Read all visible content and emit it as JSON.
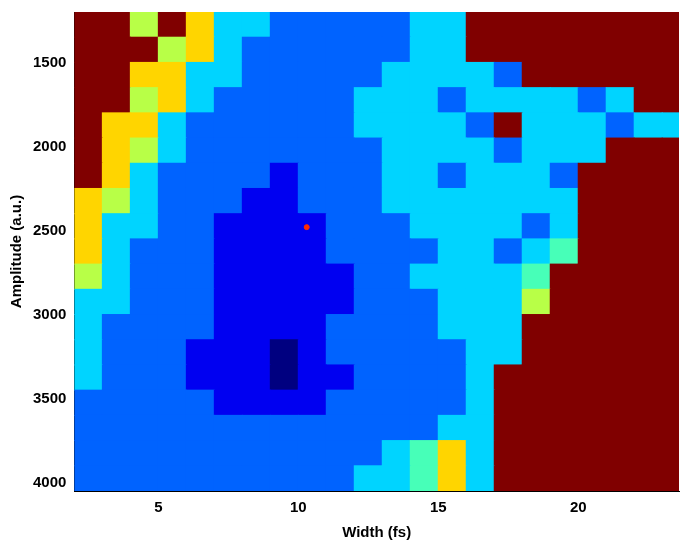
{
  "chart_data": {
    "type": "heatmap",
    "x_label": "Width (fs)",
    "y_label": "Amplitude (a.u.)",
    "xlim": [
      2,
      23.6
    ],
    "ylim": [
      4050,
      1200
    ],
    "xticks": [
      5,
      10,
      15,
      20
    ],
    "yticks": [
      1500,
      2000,
      2500,
      3000,
      3500,
      4000
    ],
    "grid": false,
    "x": [
      2.5,
      3.5,
      4.5,
      5.5,
      6.5,
      7.5,
      8.5,
      9.5,
      10.5,
      11.5,
      12.5,
      13.5,
      14.5,
      15.5,
      16.5,
      17.5,
      18.5,
      19.5,
      20.5,
      21.5,
      22.5,
      23.5
    ],
    "y": [
      1275,
      1425,
      1575,
      1725,
      1875,
      2025,
      2175,
      2325,
      2475,
      2625,
      2775,
      2925,
      3075,
      3225,
      3375,
      3525,
      3675,
      3825,
      3975
    ],
    "cells": [
      [
        9,
        9,
        5,
        9,
        6,
        3,
        3,
        2,
        2,
        2,
        2,
        2,
        3,
        3,
        9,
        9,
        9,
        9,
        9,
        9,
        9,
        9
      ],
      [
        9,
        9,
        9,
        5,
        6,
        3,
        2,
        2,
        2,
        2,
        2,
        2,
        3,
        3,
        9,
        9,
        9,
        9,
        9,
        9,
        9,
        9
      ],
      [
        9,
        9,
        6,
        6,
        3,
        3,
        2,
        2,
        2,
        2,
        2,
        3,
        3,
        3,
        3,
        2,
        9,
        9,
        9,
        9,
        9,
        9
      ],
      [
        9,
        9,
        5,
        6,
        3,
        2,
        2,
        2,
        2,
        2,
        3,
        3,
        3,
        2,
        3,
        3,
        3,
        3,
        2,
        3,
        9,
        9
      ],
      [
        9,
        6,
        6,
        3,
        2,
        2,
        2,
        2,
        2,
        2,
        3,
        3,
        3,
        3,
        2,
        9,
        3,
        3,
        3,
        2,
        3,
        3
      ],
      [
        9,
        6,
        5,
        3,
        2,
        2,
        2,
        2,
        2,
        2,
        2,
        3,
        3,
        3,
        3,
        2,
        3,
        3,
        3,
        9,
        9,
        9
      ],
      [
        9,
        6,
        3,
        2,
        2,
        2,
        2,
        1,
        2,
        2,
        2,
        3,
        3,
        2,
        3,
        3,
        3,
        2,
        9,
        9,
        9,
        9
      ],
      [
        6,
        5,
        3,
        2,
        2,
        2,
        1,
        1,
        2,
        2,
        2,
        3,
        3,
        3,
        3,
        3,
        3,
        3,
        9,
        9,
        9,
        9
      ],
      [
        6,
        3,
        3,
        2,
        2,
        1,
        1,
        1,
        1,
        2,
        2,
        2,
        3,
        3,
        3,
        3,
        2,
        3,
        9,
        9,
        9,
        9
      ],
      [
        6,
        3,
        2,
        2,
        2,
        1,
        1,
        1,
        1,
        2,
        2,
        2,
        2,
        3,
        3,
        2,
        3,
        4,
        9,
        9,
        9,
        9
      ],
      [
        5,
        3,
        2,
        2,
        2,
        1,
        1,
        1,
        1,
        1,
        2,
        2,
        3,
        3,
        3,
        3,
        4,
        9,
        9,
        9,
        9,
        9
      ],
      [
        3,
        3,
        2,
        2,
        2,
        1,
        1,
        1,
        1,
        1,
        2,
        2,
        2,
        3,
        3,
        3,
        5,
        9,
        9,
        9,
        9,
        9
      ],
      [
        3,
        2,
        2,
        2,
        2,
        1,
        1,
        1,
        1,
        2,
        2,
        2,
        2,
        3,
        3,
        3,
        9,
        9,
        9,
        9,
        9,
        9
      ],
      [
        3,
        2,
        2,
        2,
        1,
        1,
        1,
        0,
        1,
        2,
        2,
        2,
        2,
        2,
        3,
        3,
        9,
        9,
        9,
        9,
        9,
        9
      ],
      [
        3,
        2,
        2,
        2,
        1,
        1,
        1,
        0,
        1,
        1,
        2,
        2,
        2,
        2,
        3,
        9,
        9,
        9,
        9,
        9,
        9,
        9
      ],
      [
        2,
        2,
        2,
        2,
        2,
        1,
        1,
        1,
        1,
        2,
        2,
        2,
        2,
        2,
        3,
        9,
        9,
        9,
        9,
        9,
        9,
        9
      ],
      [
        2,
        2,
        2,
        2,
        2,
        2,
        2,
        2,
        2,
        2,
        2,
        2,
        2,
        3,
        3,
        9,
        9,
        9,
        9,
        9,
        9,
        9
      ],
      [
        2,
        2,
        2,
        2,
        2,
        2,
        2,
        2,
        2,
        2,
        2,
        3,
        4,
        6,
        3,
        9,
        9,
        9,
        9,
        9,
        9,
        9
      ],
      [
        2,
        2,
        2,
        2,
        2,
        2,
        2,
        2,
        2,
        2,
        3,
        3,
        4,
        6,
        3,
        9,
        9,
        9,
        9,
        9,
        9,
        9
      ]
    ],
    "points": [
      {
        "x": 10.3,
        "y": 2480,
        "color": "#ff2a00"
      }
    ]
  }
}
